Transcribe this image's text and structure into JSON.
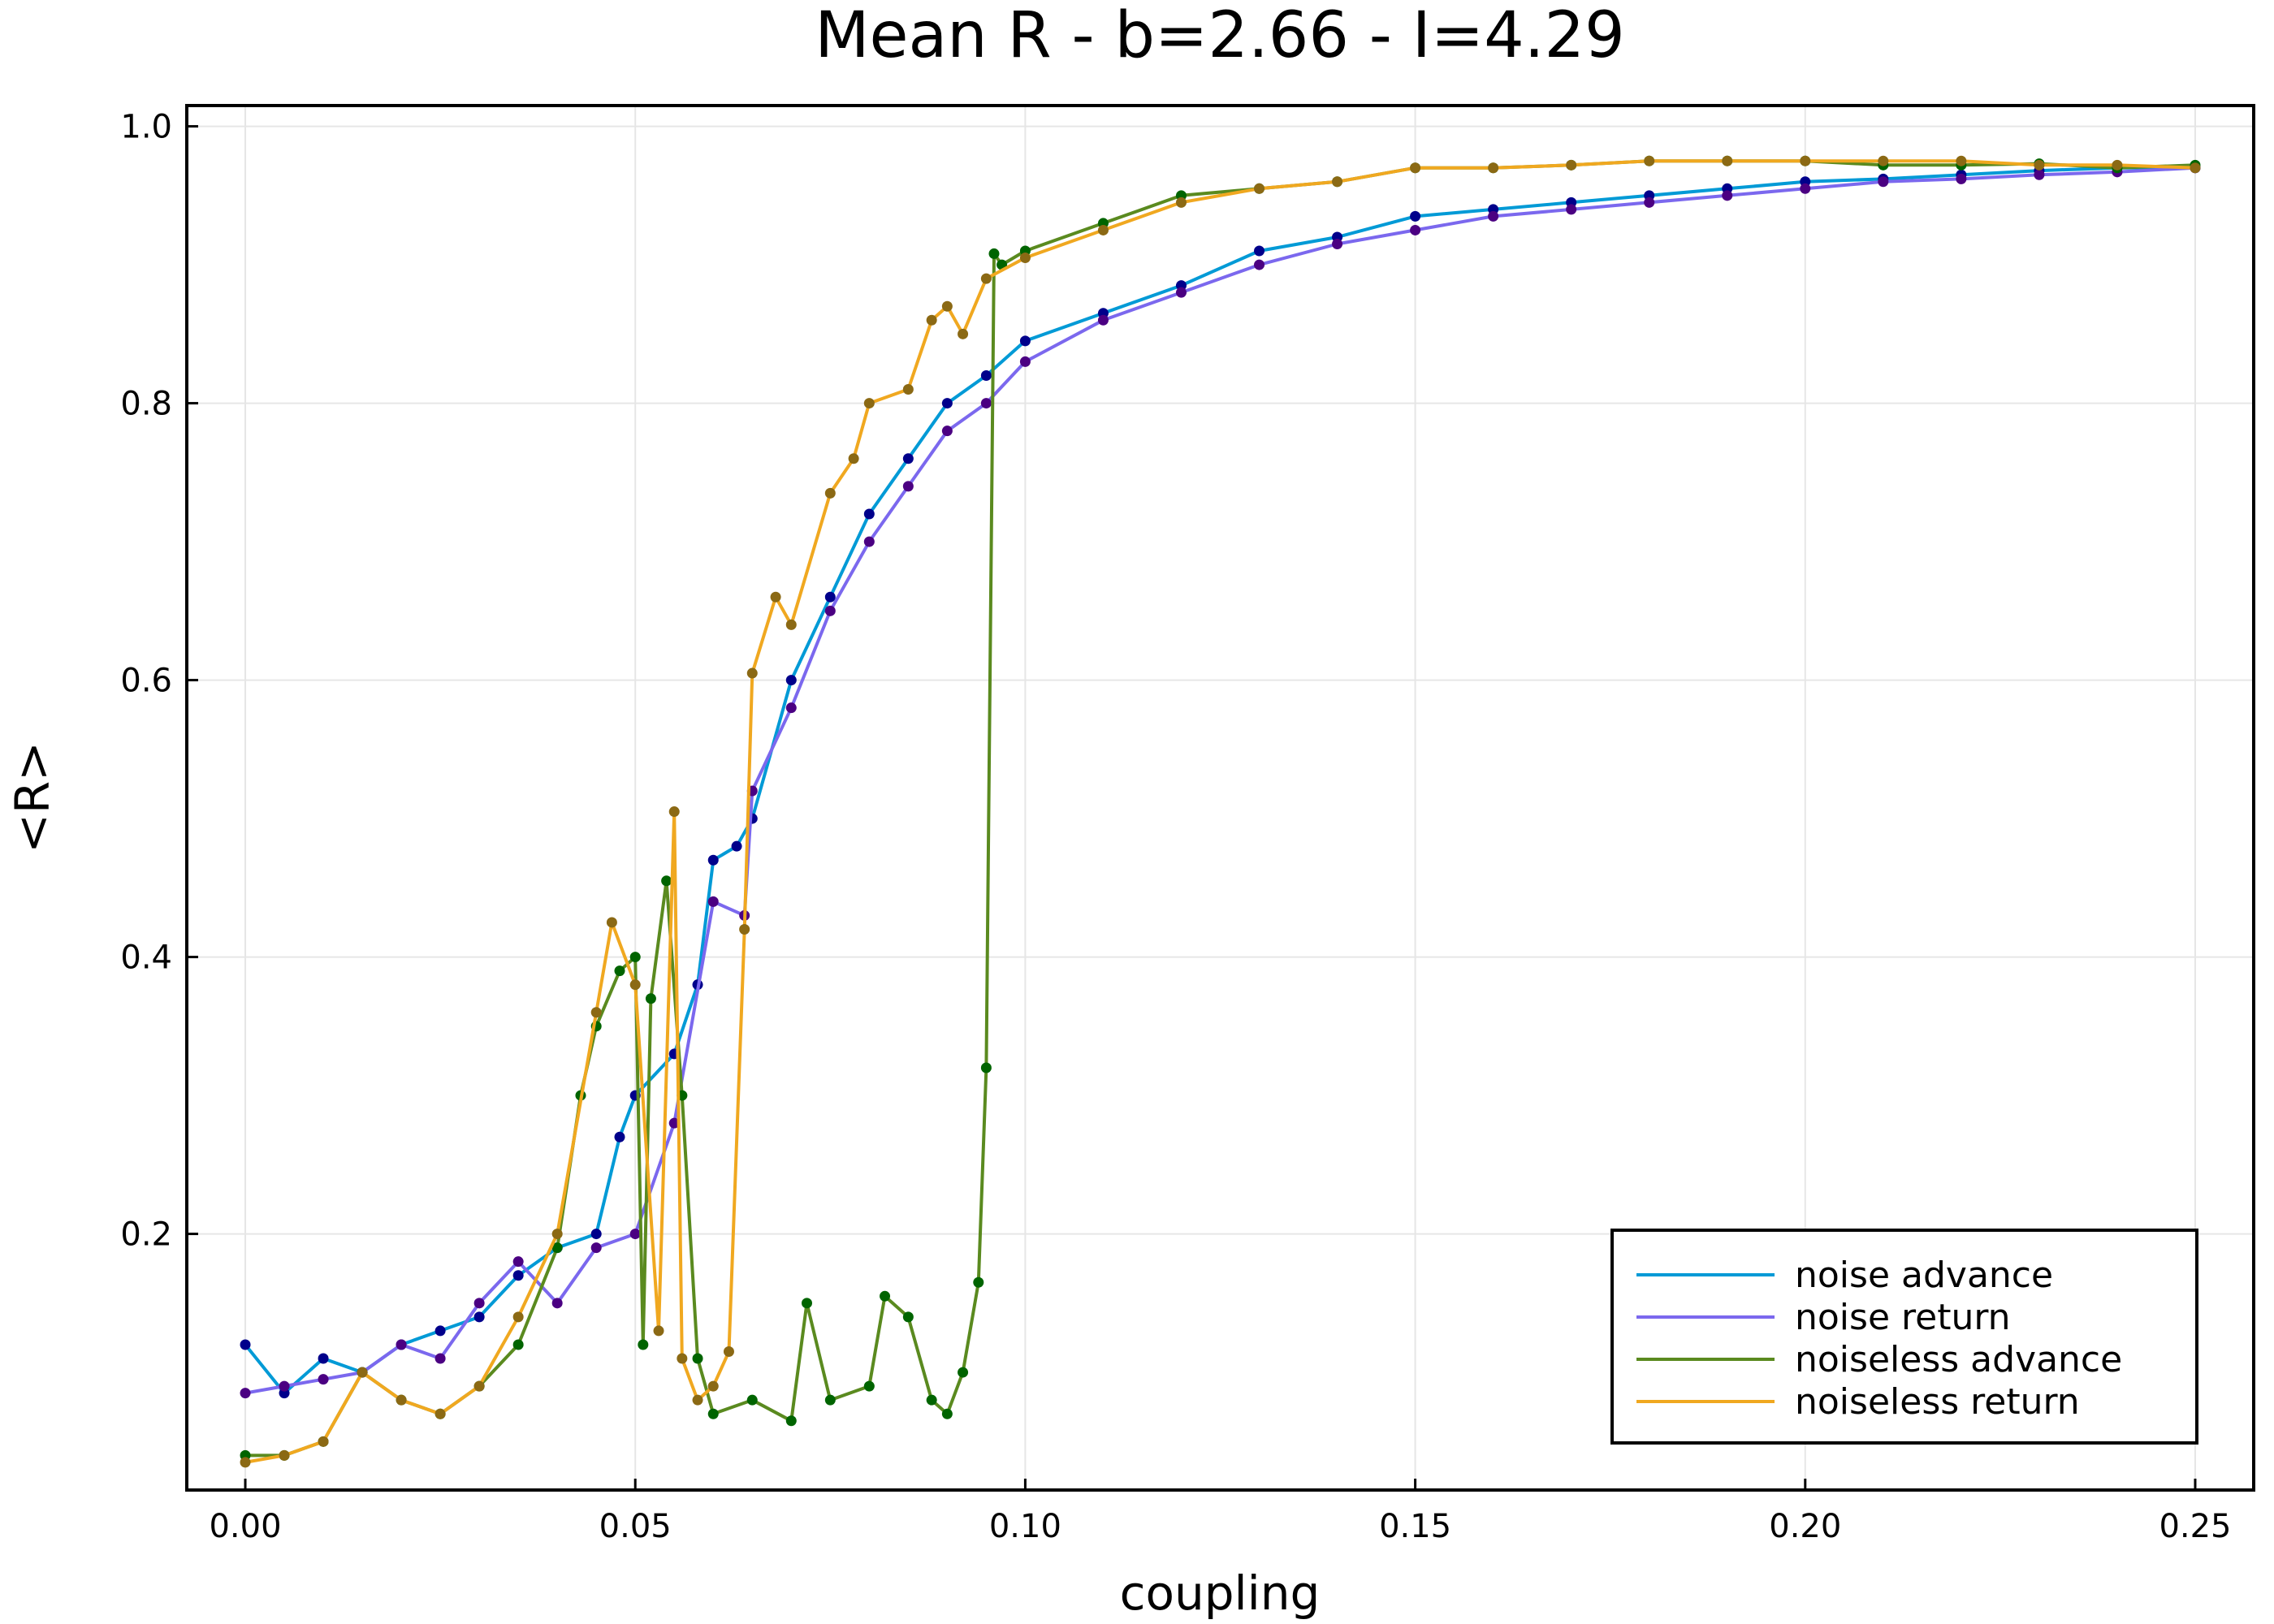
{
  "chart_data": {
    "type": "line",
    "title": "Mean R - b=2.66 - I=4.29",
    "xlabel": "coupling",
    "ylabel": "<R>",
    "xlim": [
      -0.0075,
      0.2575
    ],
    "ylim": [
      0.015,
      1.015
    ],
    "xticks": [
      0.0,
      0.05,
      0.1,
      0.15,
      0.2,
      0.25
    ],
    "xtick_labels": [
      "0.00",
      "0.05",
      "0.10",
      "0.15",
      "0.20",
      "0.25"
    ],
    "yticks": [
      0.2,
      0.4,
      0.6,
      0.8,
      1.0
    ],
    "ytick_labels": [
      "0.2",
      "0.4",
      "0.6",
      "0.8",
      "1.0"
    ],
    "grid": true,
    "legend_position": "bottom-right",
    "markers": true,
    "series": [
      {
        "name": "noise advance",
        "line_color": "#009AD6",
        "marker_color": "#00008B",
        "x": [
          0.0,
          0.005,
          0.01,
          0.015,
          0.02,
          0.025,
          0.03,
          0.035,
          0.04,
          0.045,
          0.048,
          0.05,
          0.055,
          0.058,
          0.06,
          0.063,
          0.065,
          0.07,
          0.075,
          0.08,
          0.085,
          0.09,
          0.095,
          0.1,
          0.11,
          0.12,
          0.13,
          0.14,
          0.15,
          0.16,
          0.17,
          0.18,
          0.19,
          0.2,
          0.21,
          0.22,
          0.23,
          0.24,
          0.25
        ],
        "y": [
          0.12,
          0.085,
          0.11,
          0.1,
          0.12,
          0.13,
          0.14,
          0.17,
          0.19,
          0.2,
          0.27,
          0.3,
          0.33,
          0.38,
          0.47,
          0.48,
          0.5,
          0.6,
          0.66,
          0.72,
          0.76,
          0.8,
          0.82,
          0.845,
          0.865,
          0.885,
          0.91,
          0.92,
          0.935,
          0.94,
          0.945,
          0.95,
          0.955,
          0.96,
          0.962,
          0.965,
          0.968,
          0.97,
          0.97
        ]
      },
      {
        "name": "noise return",
        "line_color": "#7B68EE",
        "marker_color": "#4B0082",
        "x": [
          0.0,
          0.005,
          0.01,
          0.015,
          0.02,
          0.025,
          0.03,
          0.035,
          0.04,
          0.045,
          0.05,
          0.055,
          0.06,
          0.064,
          0.065,
          0.07,
          0.075,
          0.08,
          0.085,
          0.09,
          0.095,
          0.1,
          0.11,
          0.12,
          0.13,
          0.14,
          0.15,
          0.16,
          0.17,
          0.18,
          0.19,
          0.2,
          0.21,
          0.22,
          0.23,
          0.24,
          0.25
        ],
        "y": [
          0.085,
          0.09,
          0.095,
          0.1,
          0.12,
          0.11,
          0.15,
          0.18,
          0.15,
          0.19,
          0.2,
          0.28,
          0.44,
          0.43,
          0.52,
          0.58,
          0.65,
          0.7,
          0.74,
          0.78,
          0.8,
          0.83,
          0.86,
          0.88,
          0.9,
          0.915,
          0.925,
          0.935,
          0.94,
          0.945,
          0.95,
          0.955,
          0.96,
          0.962,
          0.965,
          0.967,
          0.97
        ]
      },
      {
        "name": "noiseless advance",
        "line_color": "#5A8A1F",
        "marker_color": "#006400",
        "x": [
          0.0,
          0.005,
          0.01,
          0.015,
          0.02,
          0.025,
          0.03,
          0.035,
          0.04,
          0.043,
          0.045,
          0.048,
          0.05,
          0.051,
          0.052,
          0.054,
          0.056,
          0.058,
          0.06,
          0.065,
          0.07,
          0.072,
          0.075,
          0.08,
          0.082,
          0.085,
          0.088,
          0.09,
          0.092,
          0.094,
          0.095,
          0.096,
          0.097,
          0.1,
          0.11,
          0.12,
          0.13,
          0.14,
          0.15,
          0.16,
          0.17,
          0.18,
          0.19,
          0.2,
          0.21,
          0.22,
          0.23,
          0.24,
          0.25
        ],
        "y": [
          0.04,
          0.04,
          0.05,
          0.1,
          0.08,
          0.07,
          0.09,
          0.12,
          0.19,
          0.3,
          0.35,
          0.39,
          0.4,
          0.12,
          0.37,
          0.455,
          0.3,
          0.11,
          0.07,
          0.08,
          0.065,
          0.15,
          0.08,
          0.09,
          0.155,
          0.14,
          0.08,
          0.07,
          0.1,
          0.165,
          0.32,
          0.908,
          0.9,
          0.91,
          0.93,
          0.95,
          0.955,
          0.96,
          0.97,
          0.97,
          0.972,
          0.975,
          0.975,
          0.975,
          0.972,
          0.972,
          0.973,
          0.97,
          0.972
        ]
      },
      {
        "name": "noiseless return",
        "line_color": "#F0A820",
        "marker_color": "#8B6914",
        "x": [
          0.0,
          0.005,
          0.01,
          0.015,
          0.02,
          0.025,
          0.03,
          0.035,
          0.04,
          0.045,
          0.047,
          0.05,
          0.053,
          0.055,
          0.056,
          0.058,
          0.06,
          0.062,
          0.064,
          0.065,
          0.068,
          0.07,
          0.075,
          0.078,
          0.08,
          0.085,
          0.088,
          0.09,
          0.092,
          0.095,
          0.1,
          0.11,
          0.12,
          0.13,
          0.14,
          0.15,
          0.16,
          0.17,
          0.18,
          0.19,
          0.2,
          0.21,
          0.22,
          0.23,
          0.24,
          0.25
        ],
        "y": [
          0.035,
          0.04,
          0.05,
          0.1,
          0.08,
          0.07,
          0.09,
          0.14,
          0.2,
          0.36,
          0.425,
          0.38,
          0.13,
          0.505,
          0.11,
          0.08,
          0.09,
          0.115,
          0.42,
          0.605,
          0.66,
          0.64,
          0.735,
          0.76,
          0.8,
          0.81,
          0.86,
          0.87,
          0.85,
          0.89,
          0.905,
          0.925,
          0.945,
          0.955,
          0.96,
          0.97,
          0.97,
          0.972,
          0.975,
          0.975,
          0.975,
          0.975,
          0.975,
          0.972,
          0.972,
          0.97
        ]
      }
    ]
  }
}
